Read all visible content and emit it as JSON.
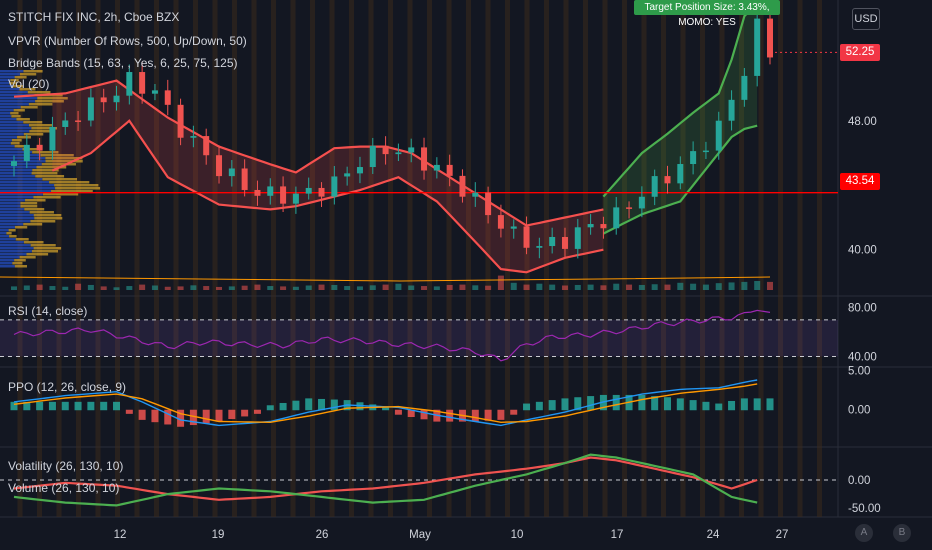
{
  "header": {
    "title": "STITCH FIX INC, 2h, Cboe BZX",
    "indicators": [
      "VPVR (Number Of Rows, 500, Up/Down, 50)",
      "Bridge Bands (15, 63, , Yes, 6, 25, 75, 125)",
      "Vol (20)"
    ],
    "currency": "USD"
  },
  "tooltip": "Target Position Size: 3.43%, MOMO: YES",
  "price_tags": [
    {
      "text": "52.25",
      "color": "#f23645"
    },
    {
      "text": "43.54",
      "color": "#ff0000"
    }
  ],
  "panes": {
    "rsi": {
      "label": "RSI (14, close)"
    },
    "ppo": {
      "label": "PPO (12, 26, close, 9)"
    },
    "vol": {
      "labels": [
        "Volatility (26, 130, 10)",
        "Volume (26, 130, 10)"
      ]
    }
  },
  "bottom_buttons": [
    "A",
    "B"
  ],
  "colors": {
    "up": "#26a69a",
    "down": "#ef5350",
    "band_red": "#f5504e",
    "band_green": "#4caf50",
    "rsi": "#9c27b0",
    "ppo_blue": "#2196f3",
    "ppo_orange": "#ff9800",
    "hline": "#ff0000"
  },
  "chart_data": [
    {
      "type": "candlestick",
      "title": "STITCH FIX INC, 2h, Cboe BZX",
      "x_ticks": [
        "12",
        "19",
        "26",
        "May",
        "10",
        "17",
        "24",
        "27"
      ],
      "y_ticks": [
        40.0,
        48.0
      ],
      "y_range": [
        37.5,
        55.5
      ],
      "horizontal_line": 43.54,
      "last_price": 52.25,
      "close_path": [
        [
          0,
          45.5
        ],
        [
          3,
          47.3
        ],
        [
          5,
          48.5
        ],
        [
          8,
          49.8
        ],
        [
          9,
          50.5
        ],
        [
          11,
          49.8
        ],
        [
          13,
          47.5
        ],
        [
          16,
          45.0
        ],
        [
          19,
          43.5
        ],
        [
          22,
          43.3
        ],
        [
          25,
          44.1
        ],
        [
          27,
          45.5
        ],
        [
          29,
          46.3
        ],
        [
          31,
          45.9
        ],
        [
          33,
          45.0
        ],
        [
          35,
          43.8
        ],
        [
          37,
          42.3
        ],
        [
          39,
          40.9
        ],
        [
          41,
          40.2
        ],
        [
          43,
          40.6
        ],
        [
          45,
          41.5
        ],
        [
          47,
          42.1
        ],
        [
          49,
          43.5
        ],
        [
          51,
          44.6
        ],
        [
          53,
          45.8
        ],
        [
          55,
          47.6
        ],
        [
          56,
          49.3
        ],
        [
          57,
          51.2
        ],
        [
          58,
          53.8
        ],
        [
          59,
          52.25
        ]
      ],
      "upper_band_red": [
        [
          0,
          49.5
        ],
        [
          4,
          49.7
        ],
        [
          8,
          50.5
        ],
        [
          12,
          48.2
        ],
        [
          16,
          46.4
        ],
        [
          20,
          45.3
        ],
        [
          22,
          44.8
        ],
        [
          25,
          46.3
        ],
        [
          27,
          46.4
        ],
        [
          29,
          46.4
        ],
        [
          31,
          46.0
        ],
        [
          34,
          44.5
        ],
        [
          37,
          43.0
        ],
        [
          40,
          41.5
        ],
        [
          43,
          42.0
        ],
        [
          46,
          42.5
        ]
      ],
      "lower_band_red": [
        [
          3,
          44.9
        ],
        [
          6,
          46.0
        ],
        [
          9,
          48.0
        ],
        [
          12,
          44.5
        ],
        [
          16,
          42.8
        ],
        [
          20,
          42.5
        ],
        [
          22,
          42.7
        ],
        [
          25,
          43.3
        ],
        [
          27,
          43.7
        ],
        [
          30,
          44.5
        ],
        [
          33,
          43.0
        ],
        [
          36,
          40.5
        ],
        [
          38,
          38.8
        ],
        [
          40,
          38.6
        ],
        [
          43,
          39.5
        ],
        [
          46,
          40.0
        ]
      ],
      "upper_band_green": [
        [
          46,
          43.3
        ],
        [
          49,
          46.0
        ],
        [
          51,
          47.2
        ],
        [
          53,
          48.5
        ],
        [
          55,
          49.7
        ],
        [
          56,
          51.8
        ],
        [
          57,
          54.5
        ],
        [
          58,
          55.3
        ]
      ],
      "lower_band_green": [
        [
          46,
          41.0
        ],
        [
          49,
          42.2
        ],
        [
          52,
          43.0
        ],
        [
          54,
          45.0
        ],
        [
          56,
          47.0
        ],
        [
          57,
          47.5
        ],
        [
          58,
          47.7
        ]
      ],
      "volume_relative": [
        0.2,
        0.25,
        0.3,
        0.22,
        0.18,
        0.35,
        0.28,
        0.2,
        0.15,
        0.22,
        0.3,
        0.25,
        0.18,
        0.2,
        0.26,
        0.22,
        0.17,
        0.2,
        0.24,
        0.3,
        0.22,
        0.2,
        0.18,
        0.25,
        0.3,
        0.28,
        0.22,
        0.2,
        0.26,
        0.3,
        0.35,
        0.25,
        0.22,
        0.2,
        0.28,
        0.3,
        0.26,
        0.24,
        0.8,
        0.4,
        0.3,
        0.35,
        0.3,
        0.25,
        0.28,
        0.3,
        0.26,
        0.35,
        0.3,
        0.28,
        0.32,
        0.3,
        0.4,
        0.35,
        0.3,
        0.38,
        0.42,
        0.45,
        0.5,
        0.45
      ]
    },
    {
      "type": "line",
      "title": "RSI (14, close)",
      "y_ticks": [
        40.0,
        80.0
      ],
      "y_range": [
        33,
        88
      ],
      "band": [
        40,
        70
      ],
      "values": [
        [
          0,
          58
        ],
        [
          3,
          60
        ],
        [
          6,
          62
        ],
        [
          9,
          55
        ],
        [
          12,
          48
        ],
        [
          15,
          52
        ],
        [
          18,
          50
        ],
        [
          21,
          49
        ],
        [
          24,
          54
        ],
        [
          27,
          53
        ],
        [
          30,
          50
        ],
        [
          33,
          48
        ],
        [
          36,
          44
        ],
        [
          38,
          37
        ],
        [
          40,
          50
        ],
        [
          42,
          56
        ],
        [
          45,
          58
        ],
        [
          48,
          62
        ],
        [
          50,
          66
        ],
        [
          52,
          68
        ],
        [
          54,
          70
        ],
        [
          56,
          72
        ],
        [
          57,
          74
        ],
        [
          58,
          80
        ],
        [
          59,
          74
        ]
      ]
    },
    {
      "type": "line",
      "title": "PPO (12, 26, close, 9)",
      "y_ticks": [
        0.0,
        5.0
      ],
      "y_range": [
        -4.5,
        5.2
      ],
      "series": [
        {
          "name": "PPO",
          "values": [
            [
              0,
              1.0
            ],
            [
              4,
              1.8
            ],
            [
              8,
              2.3
            ],
            [
              10,
              1.0
            ],
            [
              13,
              -1.3
            ],
            [
              16,
              -2.0
            ],
            [
              20,
              -1.5
            ],
            [
              23,
              -0.3
            ],
            [
              26,
              0.6
            ],
            [
              30,
              0.3
            ],
            [
              33,
              -0.7
            ],
            [
              36,
              -1.5
            ],
            [
              38,
              -2.0
            ],
            [
              40,
              -1.3
            ],
            [
              43,
              -0.3
            ],
            [
              46,
              1.0
            ],
            [
              49,
              2.0
            ],
            [
              52,
              2.6
            ],
            [
              55,
              2.8
            ],
            [
              57,
              3.5
            ],
            [
              58,
              3.8
            ]
          ]
        },
        {
          "name": "Signal",
          "values": [
            [
              0,
              0.7
            ],
            [
              4,
              1.5
            ],
            [
              8,
              2.0
            ],
            [
              10,
              1.4
            ],
            [
              13,
              -0.5
            ],
            [
              16,
              -1.5
            ],
            [
              20,
              -1.6
            ],
            [
              23,
              -0.8
            ],
            [
              26,
              0.2
            ],
            [
              30,
              0.4
            ],
            [
              33,
              -0.2
            ],
            [
              36,
              -1.0
            ],
            [
              38,
              -1.6
            ],
            [
              40,
              -1.5
            ],
            [
              43,
              -0.8
            ],
            [
              46,
              0.3
            ],
            [
              49,
              1.3
            ],
            [
              52,
              2.1
            ],
            [
              55,
              2.6
            ],
            [
              57,
              3.0
            ],
            [
              58,
              3.3
            ]
          ]
        }
      ]
    },
    {
      "type": "line",
      "title": "Volatility (26, 130, 10) / Volume (26, 130, 10)",
      "y_ticks": [
        0.0,
        -50.0
      ],
      "y_range": [
        -62,
        55
      ],
      "series": [
        {
          "name": "Volatility",
          "values": [
            [
              0,
              -15
            ],
            [
              4,
              -5
            ],
            [
              8,
              -10
            ],
            [
              12,
              -25
            ],
            [
              16,
              -35
            ],
            [
              20,
              -30
            ],
            [
              24,
              -20
            ],
            [
              28,
              -15
            ],
            [
              32,
              -5
            ],
            [
              36,
              10
            ],
            [
              40,
              20
            ],
            [
              43,
              30
            ],
            [
              45,
              40
            ],
            [
              47,
              35
            ],
            [
              50,
              20
            ],
            [
              53,
              5
            ],
            [
              56,
              -15
            ],
            [
              58,
              0
            ]
          ]
        },
        {
          "name": "Volume",
          "values": [
            [
              0,
              -30
            ],
            [
              4,
              -40
            ],
            [
              8,
              -45
            ],
            [
              12,
              -25
            ],
            [
              16,
              -15
            ],
            [
              20,
              -20
            ],
            [
              24,
              -30
            ],
            [
              28,
              -40
            ],
            [
              32,
              -35
            ],
            [
              36,
              -10
            ],
            [
              40,
              10
            ],
            [
              43,
              30
            ],
            [
              45,
              45
            ],
            [
              47,
              40
            ],
            [
              50,
              25
            ],
            [
              53,
              10
            ],
            [
              56,
              -30
            ],
            [
              58,
              -40
            ]
          ]
        }
      ]
    }
  ]
}
